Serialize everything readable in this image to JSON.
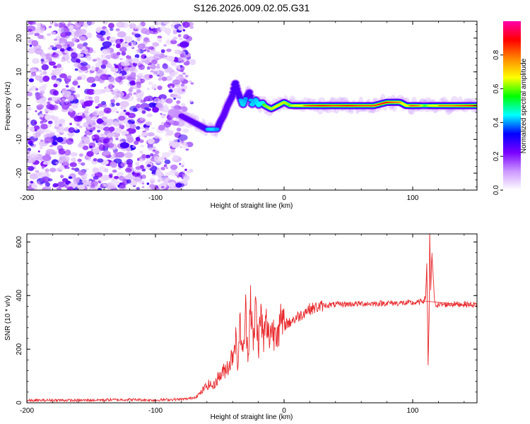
{
  "title": "S126.2026.009.02.05.G31",
  "chart_data": [
    {
      "type": "heatmap",
      "name": "spectrogram",
      "xlabel": "Height of straight line (km)",
      "ylabel": "Frequency (Hz)",
      "xlim": [
        -200,
        150
      ],
      "ylim": [
        -25,
        25
      ],
      "xticks": [
        -200,
        -100,
        0,
        100
      ],
      "yticks": [
        -20,
        -10,
        0,
        10,
        20
      ],
      "colorbar": {
        "label": "Normalized spectral amplitude",
        "range": [
          0,
          1
        ],
        "ticks": [
          "0.0",
          "0.2",
          "0.4",
          "0.6",
          "0.8"
        ],
        "colors": [
          "#ffffff",
          "#cc99ff",
          "#7a00ff",
          "#0000ff",
          "#00ffff",
          "#00ff00",
          "#ffff00",
          "#ff8800",
          "#ff0000",
          "#ff00aa"
        ]
      },
      "noise_region_x": [
        -200,
        -75
      ],
      "ridge": {
        "x": [
          -87,
          -80,
          -75,
          -70,
          -65,
          -60,
          -55,
          -52,
          -50,
          -47,
          -44,
          -40,
          -38,
          -36,
          -34,
          -32,
          -30,
          -27,
          -25,
          -22,
          -20,
          -17,
          -15,
          -10,
          -5,
          0,
          5,
          10,
          15,
          20,
          30,
          40,
          50,
          60,
          70,
          80,
          85,
          90,
          95,
          100,
          105,
          110,
          115,
          120,
          130,
          140,
          150
        ],
        "y": [
          -2,
          -3,
          -4,
          -5,
          -6,
          -7,
          -7,
          -7,
          -5,
          -3,
          0,
          3,
          7,
          4,
          2,
          0,
          2,
          4,
          0,
          2,
          0,
          1,
          0,
          -1,
          0,
          1,
          0,
          0,
          0,
          0,
          0,
          0,
          0,
          0,
          0,
          1,
          1,
          1,
          0,
          0,
          0,
          0,
          0,
          0,
          0,
          0,
          0
        ],
        "amplitude": [
          0.15,
          0.2,
          0.22,
          0.25,
          0.3,
          0.35,
          0.4,
          0.35,
          0.3,
          0.25,
          0.22,
          0.3,
          0.35,
          0.3,
          0.35,
          0.4,
          0.35,
          0.3,
          0.4,
          0.35,
          0.45,
          0.5,
          0.55,
          0.6,
          0.7,
          0.6,
          0.55,
          0.7,
          0.75,
          0.8,
          0.85,
          0.8,
          0.85,
          0.8,
          0.8,
          0.85,
          0.8,
          0.75,
          0.7,
          0.8,
          0.75,
          0.5,
          0.7,
          0.75,
          0.75,
          0.8,
          0.85
        ]
      }
    },
    {
      "type": "line",
      "name": "snr",
      "xlabel": "Height of straight line (km)",
      "ylabel": "SNR (10 * v/v)",
      "xlim": [
        -200,
        150
      ],
      "ylim": [
        0,
        630
      ],
      "xticks": [
        -200,
        -100,
        0,
        100
      ],
      "yticks": [
        0,
        200,
        400,
        600
      ],
      "color": "#e8282b",
      "series": {
        "x": [
          -200,
          -180,
          -160,
          -140,
          -120,
          -100,
          -90,
          -80,
          -75,
          -70,
          -65,
          -62,
          -58,
          -55,
          -52,
          -48,
          -45,
          -42,
          -40,
          -38,
          -36,
          -34,
          -32,
          -30,
          -28,
          -26,
          -24,
          -22,
          -20,
          -18,
          -16,
          -14,
          -12,
          -10,
          -8,
          -6,
          -4,
          -2,
          0,
          2,
          4,
          6,
          8,
          10,
          12,
          14,
          16,
          18,
          20,
          25,
          30,
          35,
          40,
          45,
          50,
          60,
          70,
          80,
          90,
          100,
          105,
          108,
          110,
          111,
          112,
          112.8,
          113.2,
          114,
          115,
          117,
          120,
          130,
          140,
          150
        ],
        "y": [
          8,
          10,
          9,
          11,
          12,
          10,
          12,
          13,
          15,
          20,
          35,
          55,
          70,
          60,
          90,
          110,
          130,
          150,
          180,
          250,
          140,
          300,
          160,
          340,
          180,
          405,
          200,
          370,
          210,
          330,
          230,
          300,
          245,
          280,
          260,
          290,
          275,
          300,
          285,
          300,
          295,
          310,
          310,
          320,
          325,
          330,
          340,
          345,
          350,
          355,
          362,
          365,
          366,
          368,
          368,
          370,
          370,
          372,
          372,
          372,
          375,
          380,
          390,
          520,
          140,
          320,
          630,
          420,
          560,
          370,
          365,
          368,
          368,
          366
        ]
      }
    }
  ]
}
